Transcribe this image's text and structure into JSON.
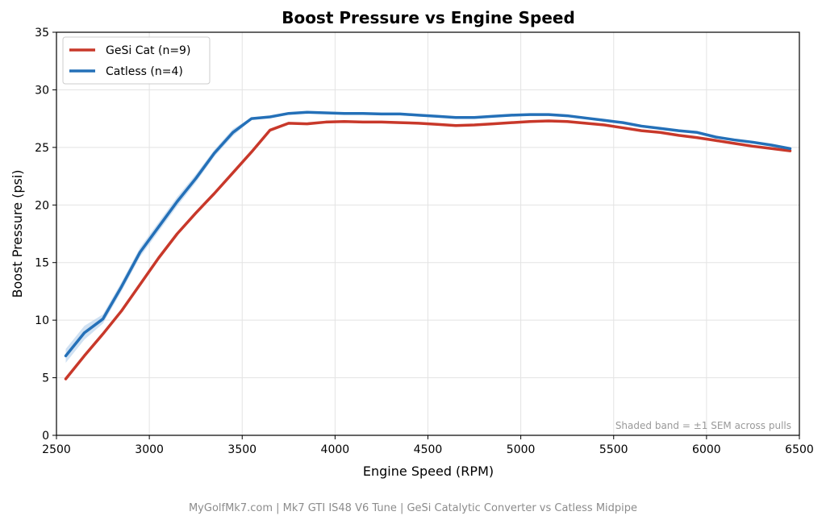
{
  "chart_data": {
    "type": "line",
    "title": "Boost Pressure vs Engine Speed",
    "xlabel": "Engine Speed (RPM)",
    "ylabel": "Boost Pressure (psi)",
    "xlim": [
      2500,
      6500
    ],
    "ylim": [
      0,
      35
    ],
    "xticks": [
      2500,
      3000,
      3500,
      4000,
      4500,
      5000,
      5500,
      6000,
      6500
    ],
    "yticks": [
      0,
      5,
      10,
      15,
      20,
      25,
      30,
      35
    ],
    "grid": true,
    "legend_position": "top-left",
    "series": [
      {
        "name": "GeSi Cat (n=9)",
        "color": "#c8382a",
        "x": [
          2550,
          2650,
          2750,
          2850,
          2950,
          3050,
          3150,
          3250,
          3350,
          3450,
          3550,
          3650,
          3750,
          3850,
          3950,
          4050,
          4150,
          4250,
          4350,
          4450,
          4550,
          4650,
          4750,
          4850,
          4950,
          5050,
          5150,
          5250,
          5350,
          5450,
          5550,
          5650,
          5750,
          5850,
          5950,
          6050,
          6150,
          6250,
          6350,
          6450
        ],
        "y": [
          4.9,
          6.9,
          8.8,
          10.8,
          13.1,
          15.4,
          17.5,
          19.3,
          21.0,
          22.8,
          24.6,
          26.5,
          27.1,
          27.05,
          27.2,
          27.25,
          27.2,
          27.2,
          27.15,
          27.1,
          27.0,
          26.9,
          26.95,
          27.05,
          27.15,
          27.25,
          27.3,
          27.25,
          27.1,
          26.95,
          26.7,
          26.45,
          26.3,
          26.05,
          25.85,
          25.6,
          25.35,
          25.1,
          24.9,
          24.7
        ]
      },
      {
        "name": "Catless (n=4)",
        "color": "#2470b8",
        "band_color": "#a9c8e8",
        "x": [
          2550,
          2650,
          2750,
          2850,
          2950,
          3050,
          3150,
          3250,
          3350,
          3450,
          3550,
          3650,
          3750,
          3850,
          3950,
          4050,
          4150,
          4250,
          4350,
          4450,
          4550,
          4650,
          4750,
          4850,
          4950,
          5050,
          5150,
          5250,
          5350,
          5450,
          5550,
          5650,
          5750,
          5850,
          5950,
          6050,
          6150,
          6250,
          6350,
          6450
        ],
        "y": [
          6.9,
          8.9,
          10.1,
          12.9,
          15.9,
          18.1,
          20.3,
          22.3,
          24.5,
          26.3,
          27.5,
          27.65,
          27.95,
          28.05,
          28.0,
          27.95,
          27.95,
          27.9,
          27.9,
          27.8,
          27.7,
          27.6,
          27.6,
          27.7,
          27.8,
          27.85,
          27.85,
          27.75,
          27.55,
          27.35,
          27.15,
          26.85,
          26.65,
          26.45,
          26.3,
          25.9,
          25.65,
          25.45,
          25.2,
          24.9
        ],
        "sem": [
          0.6,
          0.6,
          0.4,
          0.4,
          0.4,
          0.4,
          0.4,
          0.35,
          0.3,
          0.3,
          0.1,
          0.1,
          0.1,
          0.1,
          0.1,
          0.1,
          0.1,
          0.1,
          0.1,
          0.1,
          0.1,
          0.1,
          0.1,
          0.1,
          0.1,
          0.1,
          0.1,
          0.1,
          0.1,
          0.1,
          0.1,
          0.1,
          0.1,
          0.1,
          0.1,
          0.1,
          0.1,
          0.1,
          0.1,
          0.1
        ]
      }
    ],
    "annotation": "Shaded band = ±1 SEM across pulls",
    "footer": "MyGolfMk7.com  |  Mk7 GTI IS48 V6 Tune  |  GeSi Catalytic Converter vs Catless Midpipe"
  }
}
